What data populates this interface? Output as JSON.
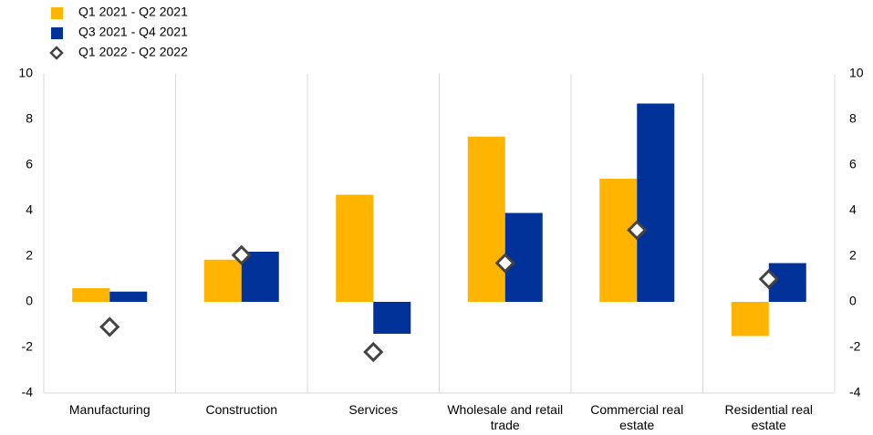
{
  "chart_data": {
    "type": "bar",
    "categories": [
      "Manufacturing",
      "Construction",
      "Services",
      "Wholesale and retail trade",
      "Commercial real estate",
      "Residential real estate"
    ],
    "series": [
      {
        "name": "Q1 2021 - Q2 2021",
        "type": "bar",
        "color": "#ffb400",
        "values": [
          0.6,
          1.85,
          4.7,
          7.25,
          5.4,
          -1.5
        ]
      },
      {
        "name": "Q3 2021 - Q4 2021",
        "type": "bar",
        "color": "#003299",
        "values": [
          0.45,
          2.2,
          -1.4,
          3.9,
          8.7,
          1.7
        ]
      },
      {
        "name": "Q1 2022 - Q2 2022",
        "type": "diamond",
        "color": "#444444",
        "values": [
          -1.1,
          2.05,
          -2.2,
          1.7,
          3.15,
          1.0
        ]
      }
    ],
    "ylim": [
      -4,
      10
    ],
    "yticks": [
      -4,
      -2,
      0,
      2,
      4,
      6,
      8,
      10
    ],
    "y2lim": [
      -4,
      10
    ],
    "y2ticks": [
      -4,
      -2,
      0,
      2,
      4,
      6,
      8,
      10
    ],
    "legend": "top-left"
  }
}
